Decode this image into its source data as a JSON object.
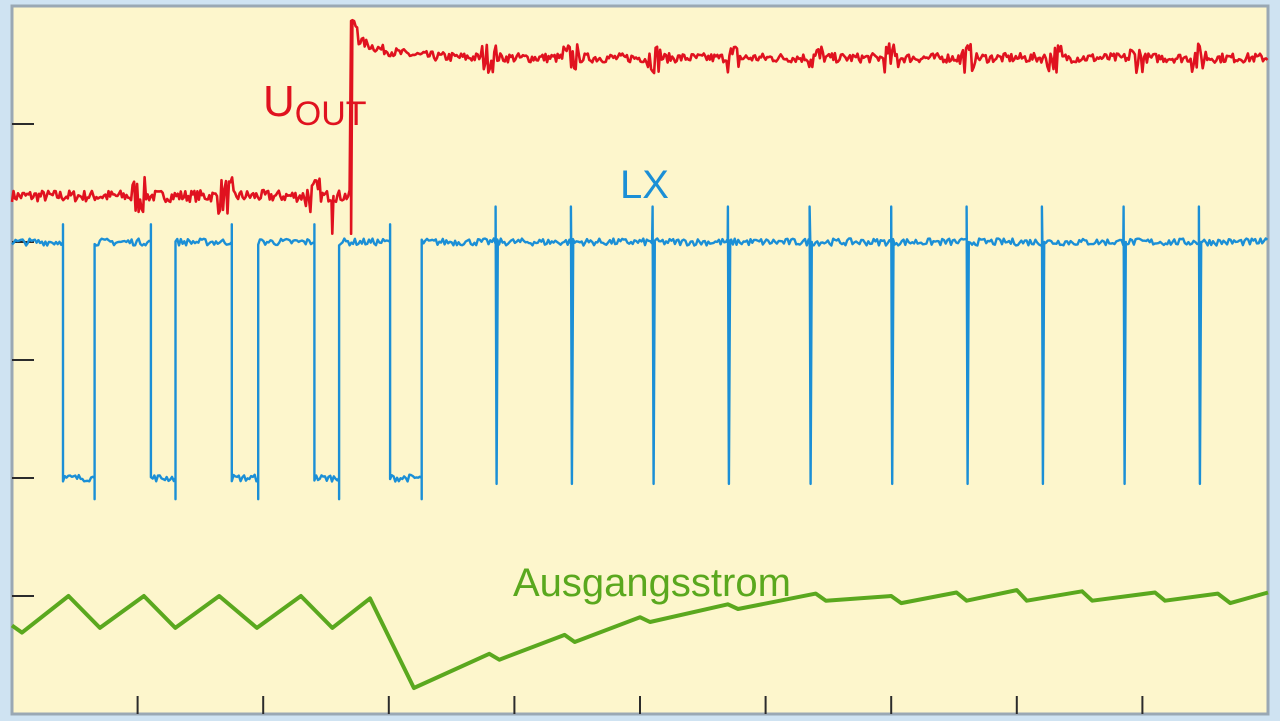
{
  "chart_data": {
    "type": "line",
    "title": "",
    "xlabel": "",
    "ylabel": "",
    "grid": false,
    "colors": {
      "background": "#fdf6cc",
      "frame": "#9aa8b4",
      "uout": "#e0121f",
      "lx": "#1b8fd6",
      "current": "#5aa81e"
    },
    "ylim": [
      0,
      6
    ],
    "x_ticks": [
      1,
      2,
      3,
      4,
      5,
      6,
      7,
      8,
      9
    ],
    "y_ticks": [
      1,
      2,
      3,
      4,
      5
    ],
    "series": [
      {
        "name": "U",
        "name_sub": "OUT",
        "kind": "noisy",
        "color": "#e0121f",
        "segments": [
          {
            "x0": 0.0,
            "x1": 2.7,
            "level": 4.39,
            "noise": 0.05
          },
          {
            "x0": 2.7,
            "x1": 10.0,
            "level": 5.56,
            "noise": 0.04
          }
        ],
        "transition_x": 2.7,
        "overshoot": 5.88,
        "dip": 4.07,
        "bursts_x": [
          1.0,
          1.7,
          2.4,
          3.8,
          4.45,
          5.1,
          5.75,
          6.4,
          7.0,
          7.6,
          8.3,
          8.95,
          9.45
        ]
      },
      {
        "name": "LX",
        "kind": "switching",
        "color": "#1b8fd6",
        "high": 4.0,
        "low": 2.0,
        "phase1_pulses": [
          [
            0.4,
            0.65
          ],
          [
            1.1,
            1.3
          ],
          [
            1.75,
            1.95
          ],
          [
            2.4,
            2.6
          ],
          [
            3.0,
            3.25
          ]
        ],
        "phase2_spikes": [
          3.85,
          4.45,
          5.1,
          5.7,
          6.35,
          7.0,
          7.6,
          8.2,
          8.85,
          9.45
        ]
      },
      {
        "name": "Ausgangsstrom",
        "kind": "sawtooth",
        "color": "#5aa81e",
        "x": [
          0.0,
          0.08,
          0.45,
          0.7,
          1.05,
          1.3,
          1.65,
          1.95,
          2.3,
          2.55,
          2.85,
          3.2,
          3.8,
          3.88,
          4.4,
          4.48,
          5.0,
          5.08,
          5.7,
          5.78,
          6.4,
          6.48,
          7.0,
          7.08,
          7.52,
          7.6,
          8.0,
          8.08,
          8.52,
          8.6,
          9.1,
          9.18,
          9.6,
          9.7,
          10.0
        ],
        "values": [
          0.75,
          0.69,
          1.0,
          0.73,
          1.0,
          0.73,
          1.0,
          0.73,
          1.0,
          0.73,
          0.98,
          0.22,
          0.51,
          0.46,
          0.67,
          0.61,
          0.82,
          0.78,
          0.93,
          0.89,
          1.02,
          0.96,
          1.0,
          0.94,
          1.03,
          0.96,
          1.05,
          0.96,
          1.04,
          0.96,
          1.03,
          0.96,
          1.02,
          0.94,
          1.03
        ]
      }
    ]
  }
}
